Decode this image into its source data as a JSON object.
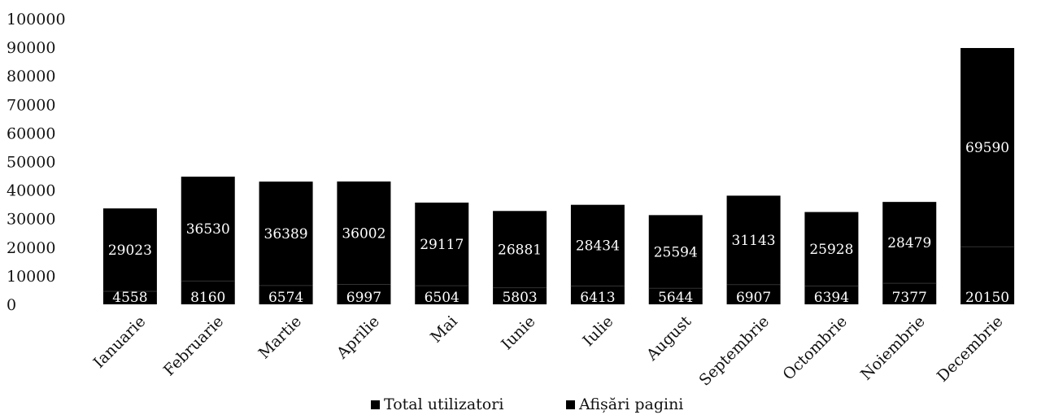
{
  "chart_data": {
    "type": "bar",
    "stacked": true,
    "categories": [
      "Ianuarie",
      "Februarie",
      "Martie",
      "Aprilie",
      "Mai",
      "Iunie",
      "Iulie",
      "August",
      "Septembrie",
      "Octombrie",
      "Noiembrie",
      "Decembrie"
    ],
    "series": [
      {
        "name": "Total utilizatori",
        "values": [
          4558,
          8160,
          6574,
          6997,
          6504,
          5803,
          6413,
          5644,
          6907,
          6394,
          7377,
          20150
        ],
        "color": "#000000"
      },
      {
        "name": "Afișări pagini",
        "values": [
          29023,
          36530,
          36389,
          36002,
          29117,
          26881,
          28434,
          25594,
          31143,
          25928,
          28479,
          69590
        ],
        "color": "#000000"
      }
    ],
    "yticks": [
      "0",
      "10000",
      "20000",
      "30000",
      "40000",
      "50000",
      "60000",
      "70000",
      "80000",
      "90000",
      "100000"
    ],
    "ylim": [
      0,
      100000
    ],
    "title": "",
    "xlabel": "",
    "ylabel": "",
    "grid": false,
    "legend": "bottom"
  }
}
